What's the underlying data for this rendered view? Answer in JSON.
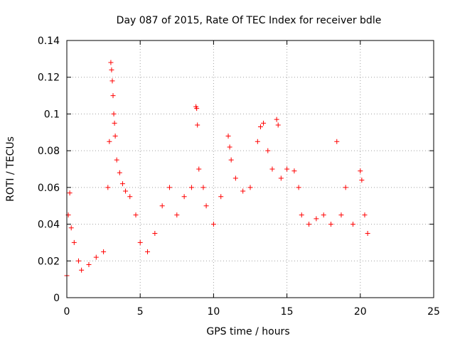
{
  "chart_data": {
    "type": "scatter",
    "title": "Day 087 of 2015, Rate Of TEC Index for receiver bdle",
    "xlabel": "GPS time / hours",
    "ylabel": "ROTI / TECUs",
    "xlim": [
      0,
      25
    ],
    "ylim": [
      0,
      0.14
    ],
    "xticks": [
      0,
      5,
      10,
      15,
      20,
      25
    ],
    "yticks": [
      0,
      0.02,
      0.04,
      0.06,
      0.08,
      0.1,
      0.12,
      0.14
    ],
    "xtick_labels": [
      "0",
      "5",
      "10",
      "15",
      "20",
      "25"
    ],
    "ytick_labels": [
      "0",
      "0.02",
      "0.04",
      "0.06",
      "0.08",
      "0.1",
      "0.12",
      "0.14"
    ],
    "grid": true,
    "marker": "plus",
    "color": "#ff0000",
    "series": [
      {
        "points": [
          [
            0.0,
            0.012
          ],
          [
            0.1,
            0.045
          ],
          [
            0.2,
            0.057
          ],
          [
            0.3,
            0.038
          ],
          [
            0.5,
            0.03
          ],
          [
            0.8,
            0.02
          ],
          [
            1.0,
            0.015
          ],
          [
            1.5,
            0.018
          ],
          [
            2.0,
            0.022
          ],
          [
            2.5,
            0.025
          ],
          [
            2.8,
            0.06
          ],
          [
            2.9,
            0.085
          ],
          [
            3.0,
            0.128
          ],
          [
            3.05,
            0.124
          ],
          [
            3.1,
            0.118
          ],
          [
            3.15,
            0.11
          ],
          [
            3.2,
            0.1
          ],
          [
            3.25,
            0.095
          ],
          [
            3.3,
            0.088
          ],
          [
            3.4,
            0.075
          ],
          [
            3.6,
            0.068
          ],
          [
            3.8,
            0.062
          ],
          [
            4.0,
            0.058
          ],
          [
            4.3,
            0.055
          ],
          [
            4.7,
            0.045
          ],
          [
            5.0,
            0.03
          ],
          [
            5.5,
            0.025
          ],
          [
            6.0,
            0.035
          ],
          [
            6.5,
            0.05
          ],
          [
            7.0,
            0.06
          ],
          [
            7.5,
            0.045
          ],
          [
            8.0,
            0.055
          ],
          [
            8.5,
            0.06
          ],
          [
            8.8,
            0.104
          ],
          [
            8.85,
            0.103
          ],
          [
            8.9,
            0.094
          ],
          [
            9.0,
            0.07
          ],
          [
            9.3,
            0.06
          ],
          [
            9.5,
            0.05
          ],
          [
            10.0,
            0.04
          ],
          [
            10.5,
            0.055
          ],
          [
            11.0,
            0.088
          ],
          [
            11.1,
            0.082
          ],
          [
            11.2,
            0.075
          ],
          [
            11.5,
            0.065
          ],
          [
            12.0,
            0.058
          ],
          [
            12.5,
            0.06
          ],
          [
            13.0,
            0.085
          ],
          [
            13.2,
            0.093
          ],
          [
            13.4,
            0.095
          ],
          [
            13.7,
            0.08
          ],
          [
            14.0,
            0.07
          ],
          [
            14.3,
            0.097
          ],
          [
            14.4,
            0.094
          ],
          [
            14.6,
            0.065
          ],
          [
            15.0,
            0.07
          ],
          [
            15.5,
            0.069
          ],
          [
            15.8,
            0.06
          ],
          [
            16.0,
            0.045
          ],
          [
            16.5,
            0.04
          ],
          [
            17.0,
            0.043
          ],
          [
            17.5,
            0.045
          ],
          [
            18.0,
            0.04
          ],
          [
            18.4,
            0.085
          ],
          [
            18.7,
            0.045
          ],
          [
            19.0,
            0.06
          ],
          [
            19.5,
            0.04
          ],
          [
            20.0,
            0.069
          ],
          [
            20.1,
            0.064
          ],
          [
            20.3,
            0.045
          ],
          [
            20.5,
            0.035
          ]
        ]
      }
    ]
  }
}
